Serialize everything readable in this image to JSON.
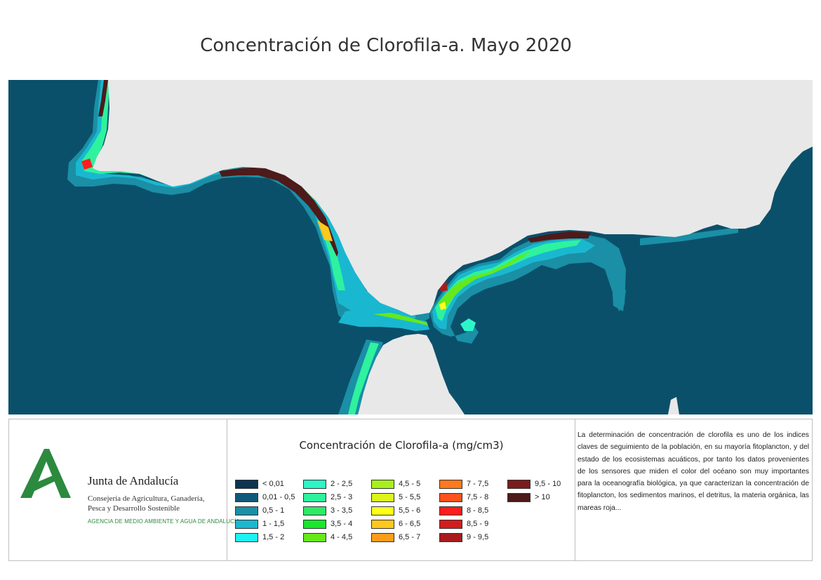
{
  "title": "Concentración de Clorofila-a. Mayo 2020",
  "colors": {
    "ocean": "#0b506a",
    "land": "#e8e8e8",
    "org_green": "#2b8a3e"
  },
  "logo": {
    "icon": "junta-andalucia-logo-icon",
    "org_name": "Junta de Andalucía",
    "department_line1": "Consejería de Agricultura, Ganadería,",
    "department_line2": "Pesca y Desarrollo Sostenible",
    "agency": "AGENCIA DE MEDIO AMBIENTE Y AGUA DE ANDALUCÍA"
  },
  "legend": {
    "title": "Concentración de Clorofila-a (mg/cm3)",
    "items": [
      {
        "label": "< 0,01",
        "color": "#0b3550"
      },
      {
        "label": "0,01 - 0,5",
        "color": "#0f5a7a"
      },
      {
        "label": "0,5 - 1",
        "color": "#1a8fa6"
      },
      {
        "label": "1 - 1,5",
        "color": "#19b8d0"
      },
      {
        "label": "1,5 - 2",
        "color": "#1ff2f2"
      },
      {
        "label": "2 - 2,5",
        "color": "#2ef5c8"
      },
      {
        "label": "2,5 - 3",
        "color": "#2ef29e"
      },
      {
        "label": "3 - 3,5",
        "color": "#2eea66"
      },
      {
        "label": "3,5 - 4",
        "color": "#18e82a"
      },
      {
        "label": "4 - 4,5",
        "color": "#66e81c"
      },
      {
        "label": "4,5 - 5",
        "color": "#a8f01c"
      },
      {
        "label": "5 - 5,5",
        "color": "#dcf51c"
      },
      {
        "label": "5,5 - 6",
        "color": "#ffff1c"
      },
      {
        "label": "6 - 6,5",
        "color": "#ffc81c"
      },
      {
        "label": "6,5 - 7",
        "color": "#ff9c1c"
      },
      {
        "label": "7 - 7,5",
        "color": "#ff7a1c"
      },
      {
        "label": "7,5 - 8",
        "color": "#ff521c"
      },
      {
        "label": "8 - 8,5",
        "color": "#ff1c1c"
      },
      {
        "label": "8,5 - 9",
        "color": "#d41c1c"
      },
      {
        "label": "9 - 9,5",
        "color": "#a81c1c"
      },
      {
        "label": "9,5 - 10",
        "color": "#7a1c1c"
      },
      {
        "label": "> 10",
        "color": "#4e1a1a"
      }
    ]
  },
  "description": "La determinación de concentración de clorofila es uno de los indices claves de seguimiento de la población, en su mayoría fitoplancton, y del estado de los ecosistemas acuáticos, por tanto los datos provenientes de los sensores que miden el color del océano son muy importantes para la oceanografía biológica, ya que caracterizan la concentración de fitoplancton, los sedimentos marinos, el detritus, la materia orgánica, las mareas roja..."
}
